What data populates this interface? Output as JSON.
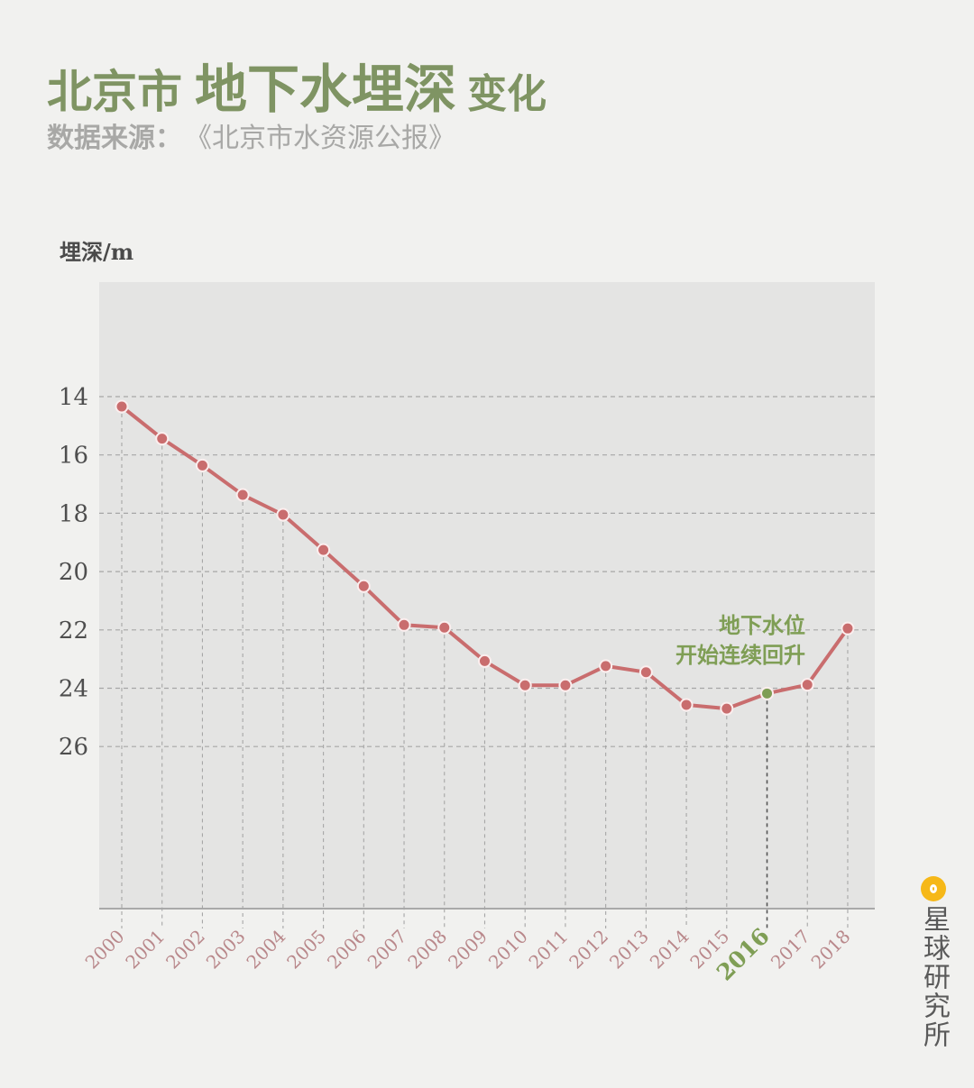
{
  "header": {
    "title_part1": "北京市",
    "title_part2": "地下水埋深",
    "title_part3": "变化",
    "subtitle_label": "数据来源：",
    "subtitle_source": "《北京市水资源公报》"
  },
  "colors": {
    "title": "#7f9463",
    "line": "#c96d6e",
    "highlight": "#7f9e55",
    "year_label": "#b9888b",
    "plot_bg": "#e4e4e3",
    "logo": "#f6b818"
  },
  "annotation": {
    "line1": "地下水位",
    "line2": "开始连续回升"
  },
  "logo": {
    "icon": "orange-circle-logo-icon",
    "text": "星球研究所"
  },
  "chart_data": {
    "type": "line",
    "title": "北京市 地下水埋深 变化",
    "subtitle": "数据来源：《北京市水资源公报》",
    "xlabel": "",
    "ylabel": "埋深/m",
    "y_inverted": true,
    "ylim": [
      10.1,
      31.6
    ],
    "yticks": [
      14,
      16,
      18,
      20,
      22,
      24,
      26
    ],
    "grid": true,
    "highlight_category": "2016",
    "categories": [
      "2000",
      "2001",
      "2002",
      "2003",
      "2004",
      "2005",
      "2006",
      "2007",
      "2008",
      "2009",
      "2010",
      "2011",
      "2012",
      "2013",
      "2014",
      "2015",
      "2016",
      "2017",
      "2018"
    ],
    "series": [
      {
        "name": "埋深",
        "values": [
          14.34,
          15.44,
          16.36,
          17.37,
          18.05,
          19.26,
          20.5,
          21.83,
          21.92,
          23.07,
          23.9,
          23.9,
          23.24,
          23.45,
          24.57,
          24.7,
          24.18,
          23.88,
          21.95
        ]
      }
    ],
    "annotations": [
      {
        "text": "地下水位 开始连续回升",
        "near": "2016"
      }
    ]
  }
}
